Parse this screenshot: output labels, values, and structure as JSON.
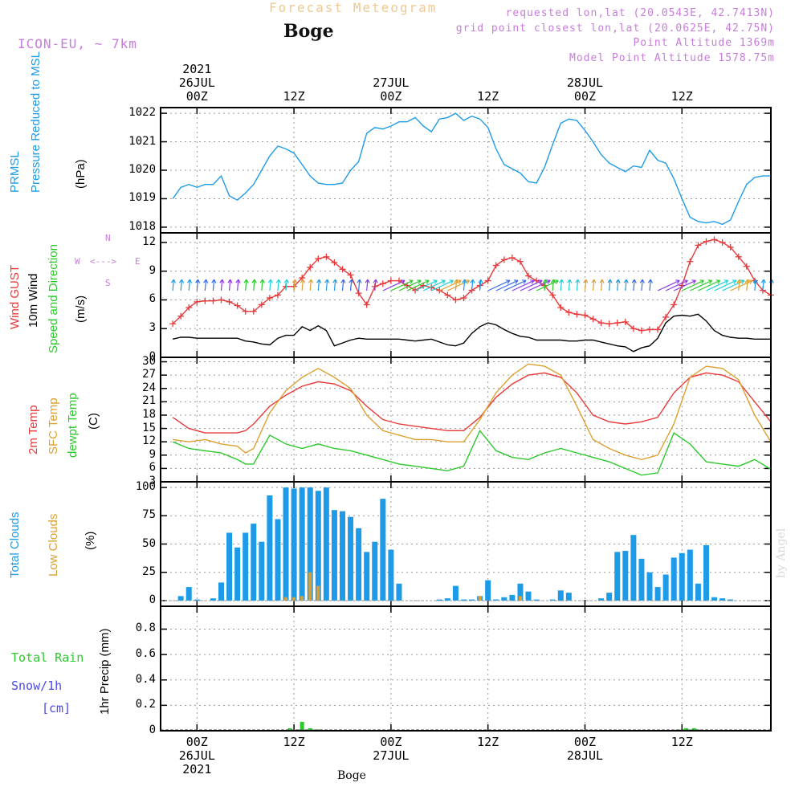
{
  "header": {
    "title": "Forecast Meteogram",
    "location": "Boge",
    "model": "ICON-EU, ~ 7km",
    "requested": "requested lon,lat (20.0543E, 42.7413N)",
    "gridpoint": "grid point closest lon,lat (20.0625E, 42.75N)",
    "point_alt": "Point Altitude 1369m",
    "model_alt": "Model Point Altitude 1578.75m"
  },
  "footer": {
    "location": "Boge",
    "credit": "by Angel"
  },
  "colors": {
    "title": "#f0c890",
    "purple": "#c77ddb",
    "pressure": "#1e9be8",
    "gust": "#e83a3a",
    "wind": "#000000",
    "dir": "#2dc82d",
    "temp": "#e83a3a",
    "sfc": "#dda030",
    "dew": "#2dc82d",
    "total": "#1e9be8",
    "low": "#dda030",
    "rain": "#2dc82d",
    "snow": "#4a4ae8"
  },
  "x_axis": {
    "top": [
      {
        "x": 6,
        "lines": [
          "2021",
          "26JUL",
          "00Z"
        ]
      },
      {
        "x": 30,
        "lines": [
          "",
          "",
          "12Z"
        ]
      },
      {
        "x": 54,
        "lines": [
          "",
          "27JUL",
          "00Z"
        ]
      },
      {
        "x": 78,
        "lines": [
          "",
          "",
          "12Z"
        ]
      },
      {
        "x": 102,
        "lines": [
          "",
          "28JUL",
          "00Z"
        ]
      },
      {
        "x": 126,
        "lines": [
          "",
          "",
          "12Z"
        ]
      }
    ],
    "bottom": [
      {
        "x": 6,
        "lines": [
          "00Z",
          "26JUL",
          "2021"
        ]
      },
      {
        "x": 30,
        "lines": [
          "12Z",
          "",
          ""
        ]
      },
      {
        "x": 54,
        "lines": [
          "00Z",
          "27JUL",
          ""
        ]
      },
      {
        "x": 78,
        "lines": [
          "12Z",
          "",
          ""
        ]
      },
      {
        "x": 102,
        "lines": [
          "00Z",
          "28JUL",
          ""
        ]
      },
      {
        "x": 126,
        "lines": [
          "12Z",
          "",
          ""
        ]
      }
    ]
  },
  "panel_labels": {
    "p1": [
      {
        "text": "PRMSL",
        "color": "#1e9be8"
      },
      {
        "text": "Pressure Reduced to MSL",
        "color": "#1e9be8"
      },
      {
        "text": "(hPa)",
        "color": "#000000"
      }
    ],
    "p2": [
      {
        "text": "Wind GUST",
        "color": "#e83a3a"
      },
      {
        "text": "10m Wind",
        "color": "#000000"
      },
      {
        "text": "Speed and Direction",
        "color": "#2dc82d"
      },
      {
        "text": "(m/s)",
        "color": "#000000"
      }
    ],
    "p2_compass": {
      "west": "W",
      "east": "E",
      "north": "N",
      "south": "S",
      "arrows": "<--->"
    },
    "p3": [
      {
        "text": "2m Temp",
        "color": "#e83a3a"
      },
      {
        "text": "SFC Temp",
        "color": "#dda030"
      },
      {
        "text": "dewpt Temp",
        "color": "#2dc82d"
      },
      {
        "text": "(C)",
        "color": "#000000"
      }
    ],
    "p4": [
      {
        "text": "Total Clouds",
        "color": "#1e9be8"
      },
      {
        "text": "Low Clouds",
        "color": "#dda030"
      },
      {
        "text": "(%)",
        "color": "#000000"
      }
    ],
    "p5_left": [
      {
        "text": "Total  Rain",
        "color": "#2dc82d"
      },
      {
        "text": "Snow/1h",
        "color": "#4a4ae8"
      },
      {
        "text": "[cm]",
        "color": "#4a4ae8"
      }
    ],
    "p5_axis": "1hr Precip (mm)"
  },
  "chart_data": [
    {
      "type": "line",
      "panel": "pressure",
      "title": "PRMSL Pressure Reduced to MSL",
      "ylabel": "(hPa)",
      "x_range": [
        -3,
        148
      ],
      "ylim": [
        1017.8,
        1022.2
      ],
      "yticks": [
        1018,
        1019,
        1020,
        1021,
        1022
      ],
      "x": [
        0,
        2,
        4,
        6,
        8,
        10,
        12,
        14,
        16,
        18,
        20,
        22,
        24,
        26,
        28,
        30,
        32,
        34,
        36,
        38,
        40,
        42,
        44,
        46,
        48,
        50,
        52,
        54,
        56,
        58,
        60,
        62,
        64,
        66,
        68,
        70,
        72,
        74,
        76,
        78,
        80,
        82,
        84,
        86,
        88,
        90,
        92,
        94,
        96,
        98,
        100,
        102,
        104,
        106,
        108,
        110,
        112,
        114,
        116,
        118,
        120,
        122,
        124,
        126,
        128,
        130,
        132,
        134,
        136,
        138,
        140,
        142,
        144,
        146,
        148
      ],
      "series": [
        {
          "name": "PRMSL",
          "values": [
            1019.0,
            1019.4,
            1019.5,
            1019.4,
            1019.5,
            1019.5,
            1019.8,
            1019.1,
            1018.95,
            1019.2,
            1019.5,
            1020.0,
            1020.5,
            1020.85,
            1020.75,
            1020.6,
            1020.2,
            1019.8,
            1019.55,
            1019.5,
            1019.5,
            1019.55,
            1020.0,
            1020.3,
            1021.3,
            1021.5,
            1021.45,
            1021.55,
            1021.7,
            1021.7,
            1021.85,
            1021.55,
            1021.35,
            1021.8,
            1021.85,
            1022.0,
            1021.75,
            1021.9,
            1021.8,
            1021.5,
            1020.75,
            1020.2,
            1020.05,
            1019.9,
            1019.6,
            1019.55,
            1020.1,
            1020.9,
            1021.65,
            1021.8,
            1021.75,
            1021.4,
            1021.0,
            1020.55,
            1020.25,
            1020.1,
            1019.95,
            1020.15,
            1020.1,
            1020.7,
            1020.35,
            1020.25,
            1019.7,
            1019.0,
            1018.35,
            1018.2,
            1018.15,
            1018.2,
            1018.1,
            1018.25,
            1018.9,
            1019.5,
            1019.75,
            1019.8,
            1019.8
          ]
        }
      ]
    },
    {
      "type": "line",
      "panel": "wind",
      "title": "Wind GUST / 10m Wind Speed and Direction",
      "ylabel": "(m/s)",
      "x_range": [
        -3,
        148
      ],
      "ylim": [
        0,
        13
      ],
      "yticks": [
        0,
        3,
        6,
        9,
        12
      ],
      "x": [
        0,
        2,
        4,
        6,
        8,
        10,
        12,
        14,
        16,
        18,
        20,
        22,
        24,
        26,
        28,
        30,
        32,
        34,
        36,
        38,
        40,
        42,
        44,
        46,
        48,
        50,
        52,
        54,
        56,
        58,
        60,
        62,
        64,
        66,
        68,
        70,
        72,
        74,
        76,
        78,
        80,
        82,
        84,
        86,
        88,
        90,
        92,
        94,
        96,
        98,
        100,
        102,
        104,
        106,
        108,
        110,
        112,
        114,
        116,
        118,
        120,
        122,
        124,
        126,
        128,
        130,
        132,
        134,
        136,
        138,
        140,
        142,
        144,
        146,
        148
      ],
      "series": [
        {
          "name": "Wind GUST",
          "values": [
            3.5,
            4.3,
            5.2,
            5.8,
            5.9,
            5.9,
            6.0,
            5.8,
            5.4,
            4.8,
            4.8,
            5.5,
            6.2,
            6.5,
            7.4,
            7.4,
            8.3,
            9.4,
            10.3,
            10.5,
            9.9,
            9.2,
            8.6,
            6.7,
            5.5,
            7.4,
            7.7,
            8.0,
            8.0,
            7.5,
            7.0,
            7.5,
            7.3,
            7.0,
            6.5,
            6.0,
            6.2,
            7.0,
            7.5,
            8.0,
            9.6,
            10.2,
            10.4,
            10.0,
            8.5,
            8.0,
            7.5,
            6.5,
            5.2,
            4.7,
            4.5,
            4.4,
            4.0,
            3.6,
            3.5,
            3.6,
            3.7,
            3.0,
            2.8,
            2.9,
            2.9,
            4.2,
            5.5,
            7.5,
            10.0,
            11.7,
            12.1,
            12.3,
            12.0,
            11.5,
            10.5,
            9.5,
            8.0,
            7.0,
            6.5
          ]
        },
        {
          "name": "10m Wind",
          "values": [
            1.9,
            2.1,
            2.1,
            2.0,
            2.0,
            2.0,
            2.0,
            2.0,
            2.0,
            1.7,
            1.6,
            1.4,
            1.3,
            2.0,
            2.3,
            2.3,
            3.2,
            2.8,
            3.3,
            2.8,
            1.2,
            1.5,
            1.8,
            2.0,
            1.9,
            1.9,
            1.9,
            1.9,
            1.9,
            1.8,
            1.7,
            1.8,
            1.9,
            1.6,
            1.3,
            1.2,
            1.5,
            2.5,
            3.2,
            3.6,
            3.4,
            2.9,
            2.5,
            2.2,
            2.1,
            1.8,
            1.8,
            1.8,
            1.8,
            1.7,
            1.7,
            1.8,
            1.8,
            1.6,
            1.4,
            1.2,
            1.1,
            0.6,
            1.0,
            1.2,
            2.0,
            3.6,
            4.3,
            4.4,
            4.3,
            4.5,
            3.8,
            2.8,
            2.3,
            2.1,
            2.0,
            2.0,
            1.9,
            1.9,
            1.9
          ]
        }
      ]
    },
    {
      "type": "line",
      "panel": "temperature",
      "title": "2m Temp / SFC Temp / dewpt Temp",
      "ylabel": "(C)",
      "x_range": [
        -3,
        148
      ],
      "ylim": [
        3,
        31
      ],
      "yticks": [
        3,
        6,
        9,
        12,
        15,
        18,
        21,
        24,
        27,
        30
      ],
      "x": [
        0,
        4,
        8,
        12,
        16,
        18,
        20,
        24,
        28,
        32,
        36,
        40,
        44,
        48,
        52,
        56,
        60,
        64,
        68,
        72,
        76,
        80,
        84,
        88,
        92,
        96,
        100,
        104,
        108,
        112,
        116,
        120,
        124,
        128,
        132,
        136,
        140,
        144,
        148
      ],
      "series": [
        {
          "name": "2m Temp",
          "values": [
            17.5,
            15.0,
            14.0,
            14.0,
            14.0,
            14.5,
            16.0,
            20.0,
            22.5,
            24.5,
            25.5,
            25.0,
            23.5,
            20.0,
            17.0,
            16.0,
            15.5,
            15.0,
            14.5,
            14.5,
            17.5,
            22.0,
            25.0,
            27.0,
            27.5,
            26.5,
            23.0,
            18.0,
            16.5,
            16.0,
            16.5,
            17.5,
            23.0,
            26.5,
            27.5,
            27.0,
            25.5,
            21.0,
            16.5
          ]
        },
        {
          "name": "SFC Temp",
          "values": [
            12.5,
            12.0,
            12.5,
            11.5,
            11.0,
            9.5,
            10.5,
            18.5,
            23.5,
            26.5,
            28.5,
            26.5,
            24.0,
            18.0,
            14.5,
            13.5,
            12.5,
            12.5,
            12.0,
            12.0,
            17.0,
            23.0,
            27.0,
            29.5,
            29.0,
            27.0,
            20.0,
            12.5,
            10.5,
            9.0,
            8.0,
            9.0,
            16.0,
            26.5,
            29.0,
            28.5,
            26.0,
            18.0,
            12.0
          ]
        },
        {
          "name": "dewpt Temp",
          "values": [
            12.0,
            10.5,
            10.0,
            9.5,
            8.0,
            7.0,
            7.0,
            13.5,
            11.5,
            10.5,
            11.5,
            10.5,
            10.0,
            9.0,
            8.0,
            7.0,
            6.5,
            6.0,
            5.5,
            6.5,
            14.5,
            10.0,
            8.5,
            8.0,
            9.5,
            10.5,
            9.5,
            8.5,
            7.5,
            6.0,
            4.5,
            5.0,
            14.0,
            11.5,
            7.5,
            7.0,
            6.5,
            8.0,
            5.8
          ]
        }
      ]
    },
    {
      "type": "bar",
      "panel": "clouds",
      "title": "Total Clouds / Low Clouds",
      "ylabel": "(%)",
      "x_range": [
        -3,
        148
      ],
      "ylim": [
        -5,
        105
      ],
      "yticks": [
        0,
        25,
        50,
        75,
        100
      ],
      "x": [
        2,
        4,
        6,
        8,
        10,
        12,
        14,
        16,
        18,
        20,
        22,
        24,
        26,
        28,
        30,
        32,
        34,
        36,
        38,
        40,
        42,
        44,
        46,
        48,
        50,
        52,
        54,
        56,
        58,
        60,
        62,
        64,
        66,
        68,
        70,
        72,
        74,
        76,
        78,
        80,
        82,
        84,
        86,
        88,
        90,
        92,
        94,
        96,
        98,
        100,
        102,
        104,
        106,
        108,
        110,
        112,
        114,
        116,
        118,
        120,
        122,
        124,
        126,
        128,
        130,
        132,
        134,
        136,
        138,
        140,
        142,
        144,
        146,
        148
      ],
      "series": [
        {
          "name": "Total Clouds",
          "values": [
            4,
            12,
            1,
            0,
            2,
            16,
            60,
            47,
            60,
            68,
            52,
            93,
            72,
            100,
            99,
            100,
            100,
            97,
            100,
            80,
            79,
            74,
            64,
            43,
            52,
            90,
            45,
            15,
            0,
            0,
            0,
            0,
            1,
            2,
            13,
            1,
            1,
            4,
            18,
            1,
            3,
            5,
            15,
            8,
            1,
            0,
            1,
            9,
            7,
            0,
            0,
            0,
            2,
            7,
            43,
            44,
            58,
            37,
            25,
            12,
            23,
            38,
            42,
            45,
            15,
            49,
            3,
            2,
            1,
            0,
            0,
            0,
            0,
            0
          ]
        },
        {
          "name": "Low Clouds",
          "values": [
            0,
            0,
            0,
            0,
            0,
            0,
            0,
            0,
            0,
            0,
            0,
            0,
            0,
            3,
            3,
            4,
            25,
            13,
            0,
            0,
            0,
            0,
            0,
            0,
            0,
            0,
            0,
            0,
            0,
            0,
            0,
            0,
            0,
            0,
            0,
            0,
            0,
            4,
            0,
            0,
            0,
            0,
            4,
            0,
            0,
            0,
            0,
            0,
            0,
            0,
            0,
            0,
            0,
            0,
            0,
            0,
            0,
            0,
            0,
            0,
            0,
            0,
            0,
            0,
            0,
            0,
            0,
            0,
            0,
            0,
            0,
            0,
            0,
            0
          ]
        }
      ]
    },
    {
      "type": "bar",
      "panel": "precip",
      "title": "Total Rain / Snow/1h [cm]",
      "ylabel": "1hr Precip (mm)",
      "x_range": [
        -3,
        148
      ],
      "ylim": [
        0,
        0.98
      ],
      "yticks": [
        0,
        0.2,
        0.4,
        0.6,
        0.8
      ],
      "x": [
        29,
        31,
        32,
        33,
        34,
        35,
        36,
        37,
        38,
        125,
        126,
        127,
        128,
        129,
        130
      ],
      "series": [
        {
          "name": "Total Rain",
          "values": [
            0.02,
            0.01,
            0.07,
            0.01,
            0.02,
            0.01,
            0.01,
            0.005,
            0.005,
            0.01,
            0.01,
            0.02,
            0.01,
            0.02,
            0.01
          ]
        }
      ]
    }
  ]
}
